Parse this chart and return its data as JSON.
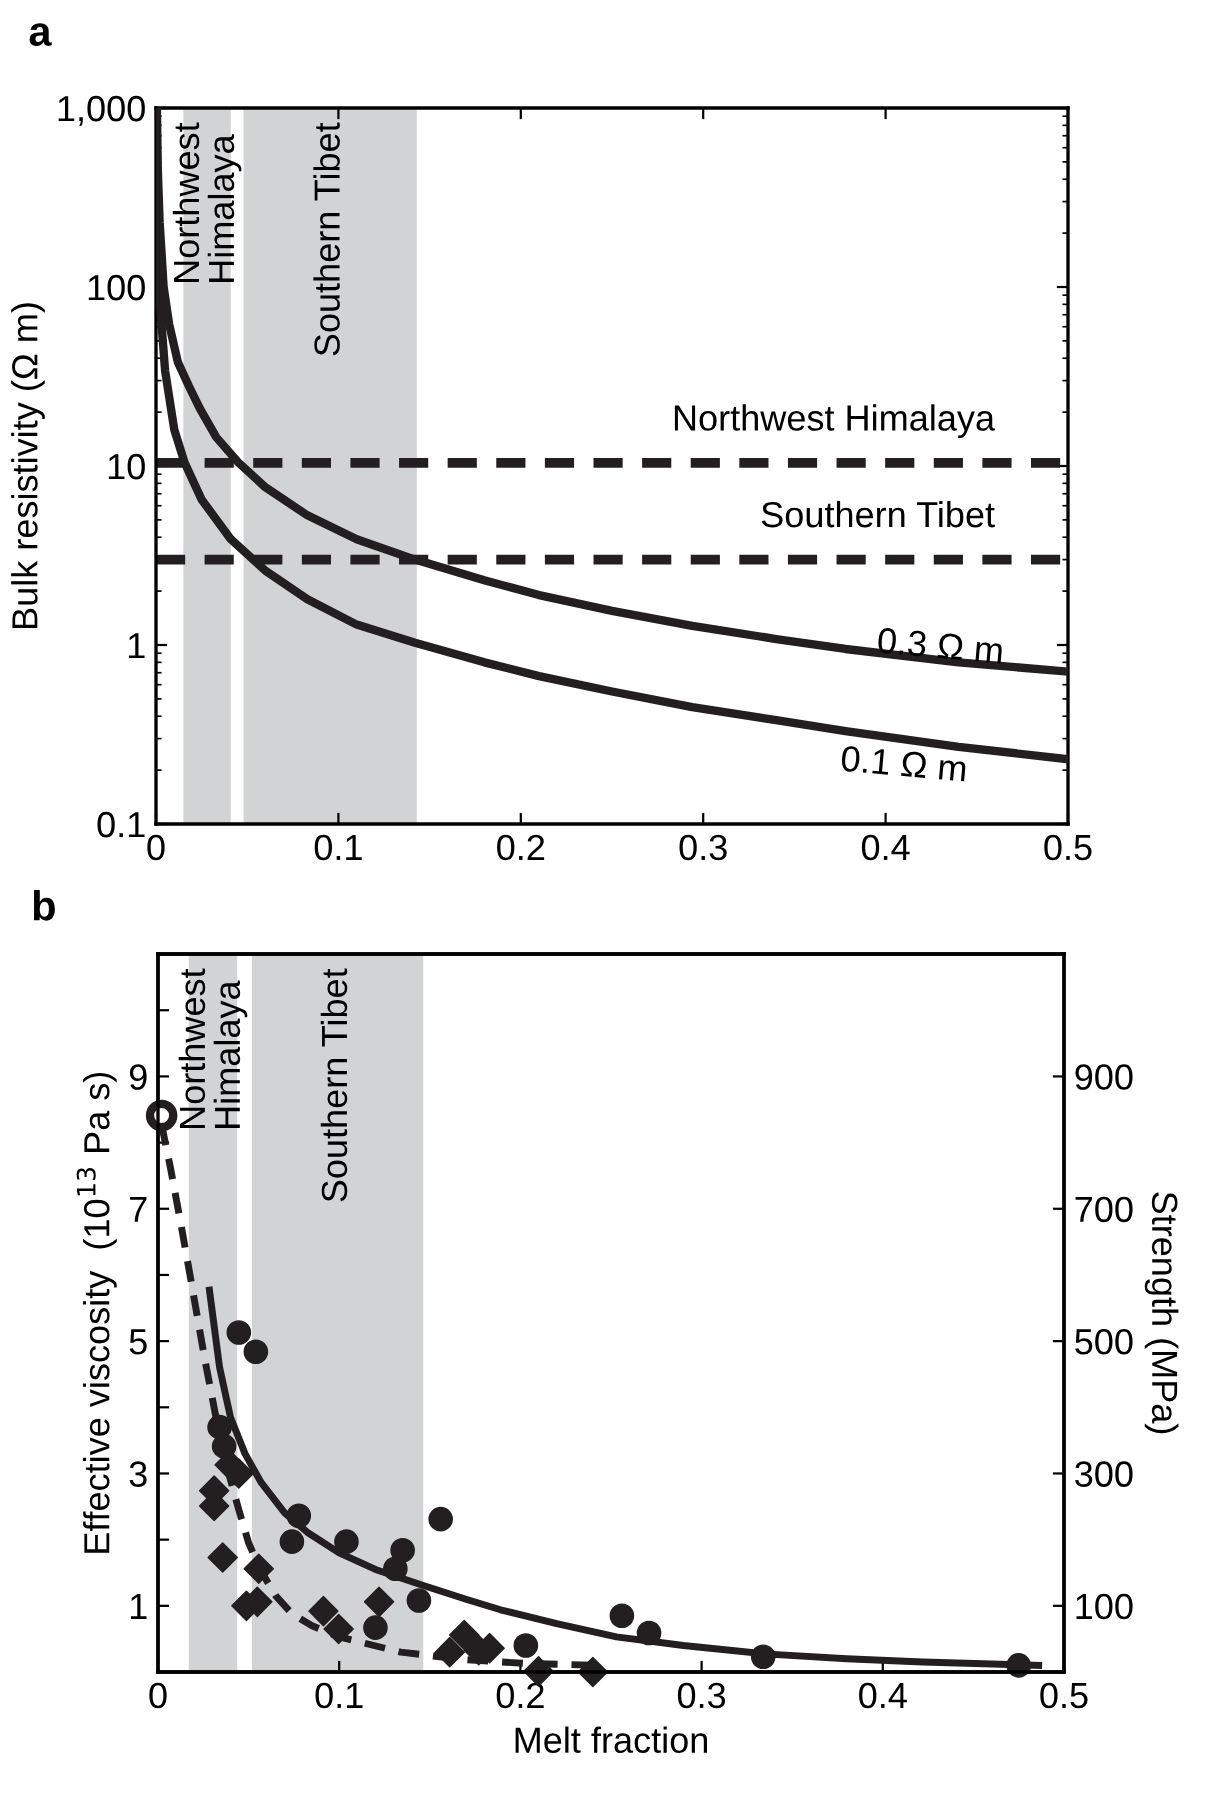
{
  "chart_data": [
    {
      "type": "line",
      "title": "a",
      "ylabel": "Bulk resistivity (Ω m)",
      "log": "y",
      "xlim": [
        0,
        0.5
      ],
      "xticks": [
        0,
        0.1,
        0.2,
        0.3,
        0.4,
        0.5
      ],
      "ylim": [
        0.1,
        1000
      ],
      "yticks": [
        {
          "value": 0.1,
          "label": "0.1"
        },
        1,
        10,
        100,
        {
          "value": 1000,
          "label": "1,000"
        }
      ],
      "line_style": "solid",
      "marker": "none",
      "bands": [
        {
          "axis": "x",
          "from": 0.015,
          "to": 0.041,
          "label": "Northwest\nHimalaya",
          "color": "#d1d3d4"
        },
        {
          "axis": "x",
          "from": 0.048,
          "to": 0.143,
          "label": "Southern Tibet",
          "color": "#d1d3d4"
        }
      ],
      "ref_lines": [
        {
          "axis": "y",
          "value": 10.4,
          "label": "Northwest Himalaya",
          "color": "#231f20",
          "line_style": "dashed"
        },
        {
          "axis": "y",
          "value": 3.0,
          "label": "Southern Tibet",
          "color": "#231f20",
          "line_style": "dashed"
        }
      ],
      "series": [
        {
          "color": "#231f20",
          "x": [
            0.0005,
            0.001,
            0.002,
            0.0042,
            0.0072,
            0.012,
            0.018,
            0.024,
            0.033,
            0.045,
            0.06,
            0.083,
            0.11,
            0.142,
            0.18,
            0.21,
            0.25,
            0.294,
            0.34,
            0.378,
            0.44,
            0.5
          ],
          "values": [
            1000,
            450,
            230,
            100,
            62,
            38,
            28,
            21,
            14.5,
            10.5,
            7.6,
            5.3,
            3.9,
            3.0,
            2.3,
            1.9,
            1.55,
            1.28,
            1.08,
            0.95,
            0.8,
            0.71
          ]
        },
        {
          "color": "#231f20",
          "x": [
            0.0003,
            0.0008,
            0.0017,
            0.005,
            0.01,
            0.0156,
            0.025,
            0.041,
            0.06,
            0.083,
            0.11,
            0.142,
            0.18,
            0.21,
            0.25,
            0.294,
            0.34,
            0.378,
            0.44,
            0.5
          ],
          "values": [
            1000,
            250,
            93,
            34,
            16,
            10.5,
            6.5,
            3.9,
            2.6,
            1.8,
            1.3,
            1.03,
            0.8,
            0.67,
            0.55,
            0.45,
            0.38,
            0.33,
            0.27,
            0.23
          ]
        }
      ],
      "annotations": [
        "0.3 Ω m",
        "0.1 Ω m"
      ]
    },
    {
      "type": "scatter",
      "title": "b",
      "xlabel": "Melt fraction",
      "ylabel": "Effective viscosity  (10$^{13}$ Pa s)",
      "y2label": "Strength (MPa)",
      "xlim": [
        0,
        0.5
      ],
      "xticks": [
        0,
        0.1,
        0.2,
        0.3,
        0.4,
        0.5
      ],
      "ylim": [
        0,
        10.85
      ],
      "yticks": [
        1,
        {
          "value": 2,
          "label": null
        },
        3,
        {
          "value": 4,
          "label": null
        },
        5,
        {
          "value": 6,
          "label": null
        },
        7,
        {
          "value": 8,
          "label": null
        },
        9,
        {
          "value": 10,
          "label": null
        }
      ],
      "y2lim": [
        0,
        1085
      ],
      "y2ticks": [
        100,
        300,
        500,
        700,
        900
      ],
      "bands": [
        {
          "axis": "x",
          "from": 0.017,
          "to": 0.0437,
          "label": "Northwest\nHimalaya",
          "color": "#d1d3d4"
        },
        {
          "axis": "x",
          "from": 0.0518,
          "to": 0.1464,
          "label": "Southern Tibet",
          "color": "#d1d3d4"
        }
      ],
      "series": [
        {
          "type": "line",
          "color": "#231f20",
          "line_style": "solid",
          "marker": "none",
          "x": [
            0.0284,
            0.034,
            0.04,
            0.048,
            0.057,
            0.07,
            0.083,
            0.1,
            0.12,
            0.146,
            0.17,
            0.189,
            0.22,
            0.253,
            0.29,
            0.337,
            0.38,
            0.422,
            0.486
          ],
          "values": [
            5.77,
            4.6,
            3.85,
            3.3,
            2.86,
            2.4,
            2.1,
            1.8,
            1.55,
            1.31,
            1.1,
            0.94,
            0.73,
            0.53,
            0.4,
            0.27,
            0.2,
            0.15,
            0.1
          ]
        },
        {
          "type": "line",
          "color": "#231f20",
          "line_style": "dashed",
          "marker": "none",
          "x": [
            0.002,
            0.007,
            0.0127,
            0.017,
            0.021,
            0.026,
            0.032,
            0.038,
            0.0446,
            0.05,
            0.057,
            0.065,
            0.074,
            0.085,
            0.1,
            0.134,
            0.168,
            0.202,
            0.244
          ],
          "values": [
            8.27,
            7.6,
            6.76,
            6.1,
            5.48,
            4.7,
            3.85,
            3.1,
            2.45,
            1.95,
            1.52,
            1.15,
            0.88,
            0.7,
            0.53,
            0.3,
            0.19,
            0.13,
            0.1
          ]
        },
        {
          "type": "scatter",
          "color": "#231f20",
          "marker": "circle",
          "x": [
            0.0446,
            0.054,
            0.034,
            0.0365,
            0.0777,
            0.0739,
            0.104,
            0.135,
            0.131,
            0.144,
            0.156,
            0.12,
            0.203,
            0.256,
            0.271,
            0.334,
            0.475
          ],
          "values": [
            5.13,
            4.84,
            3.7,
            3.41,
            2.36,
            1.97,
            1.97,
            1.84,
            1.56,
            1.08,
            2.31,
            0.67,
            0.4,
            0.85,
            0.59,
            0.23,
            0.1
          ]
        },
        {
          "type": "scatter",
          "color": "#231f20",
          "marker": "diamond",
          "x": [
            0.031,
            0.031,
            0.0446,
            0.0395,
            0.0357,
            0.0556,
            0.0488,
            0.0548,
            0.0913,
            0.0997,
            0.122,
            0.161,
            0.169,
            0.177,
            0.183,
            0.21,
            0.24
          ],
          "values": [
            2.74,
            2.51,
            3.0,
            3.13,
            1.73,
            1.56,
            1.0,
            1.06,
            0.92,
            0.65,
            1.06,
            0.3,
            0.56,
            0.33,
            0.36,
            0.01,
            0.0
          ]
        },
        {
          "type": "scatter",
          "color": "#ffffff",
          "marker": "circle",
          "x": [
            0.002
          ],
          "values": [
            8.41
          ]
        }
      ]
    }
  ]
}
